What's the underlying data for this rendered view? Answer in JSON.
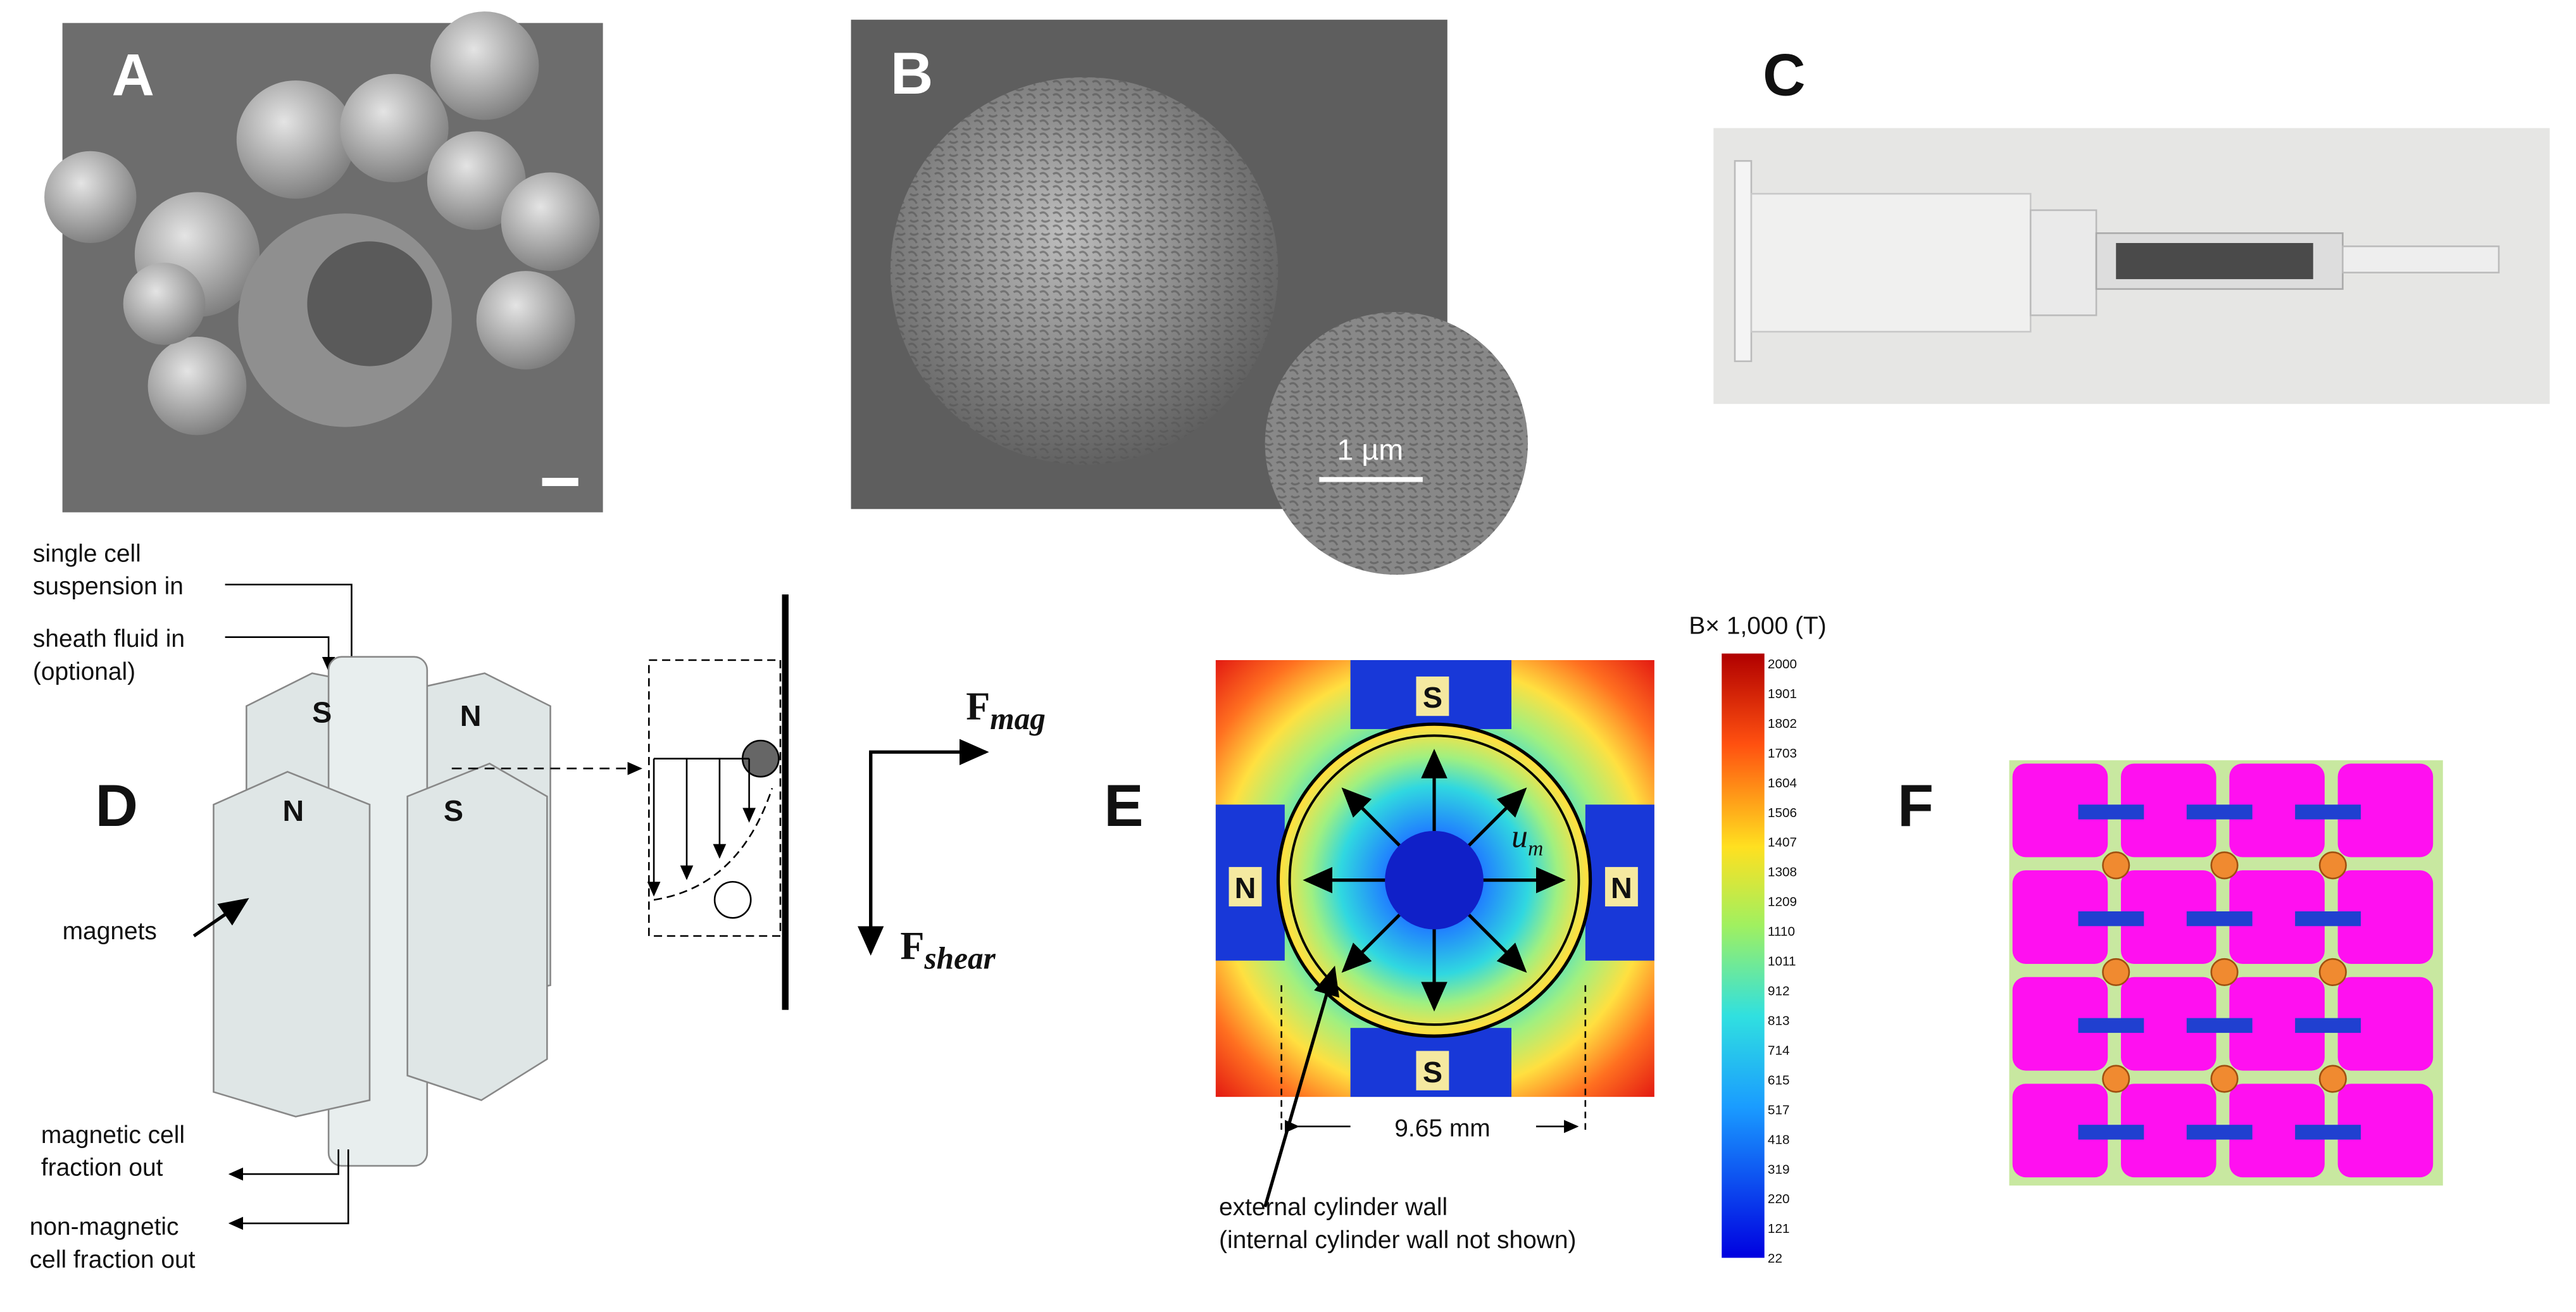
{
  "panels": {
    "a": {
      "label": "A"
    },
    "b": {
      "label": "B",
      "scale_bar": "1 µm"
    },
    "c": {
      "label": "C"
    },
    "d": {
      "label": "D",
      "inlet_suspension": [
        "single cell",
        "suspension in"
      ],
      "inlet_sheath": [
        "sheath fluid in",
        "(optional)"
      ],
      "magnets": "magnets",
      "magnetic_out": [
        "magnetic cell",
        "fraction out"
      ],
      "nonmagnetic_out": [
        "non-magnetic",
        "cell fraction out"
      ],
      "poles": [
        "S",
        "N",
        "N",
        "S"
      ],
      "force_mag": {
        "symbol": "F",
        "subscript": "mag"
      },
      "force_shear": {
        "symbol": "F",
        "subscript": "shear"
      }
    },
    "e": {
      "label": "E",
      "colorbar_title": "B× 1,000 (T)",
      "colorbar_ticks": [
        "2000",
        "1901",
        "1802",
        "1703",
        "1604",
        "1506",
        "1407",
        "1308",
        "1209",
        "1110",
        "1011",
        "912",
        "813",
        "714",
        "615",
        "517",
        "418",
        "319",
        "220",
        "121",
        "22"
      ],
      "poles": [
        "S",
        "N",
        "N",
        "S"
      ],
      "velocity": "u",
      "velocity_sub": "m",
      "dimension": "9.65 mm",
      "wall_note": [
        "external cylinder wall",
        "(internal cylinder wall not shown)"
      ]
    },
    "f": {
      "label": "F"
    }
  }
}
